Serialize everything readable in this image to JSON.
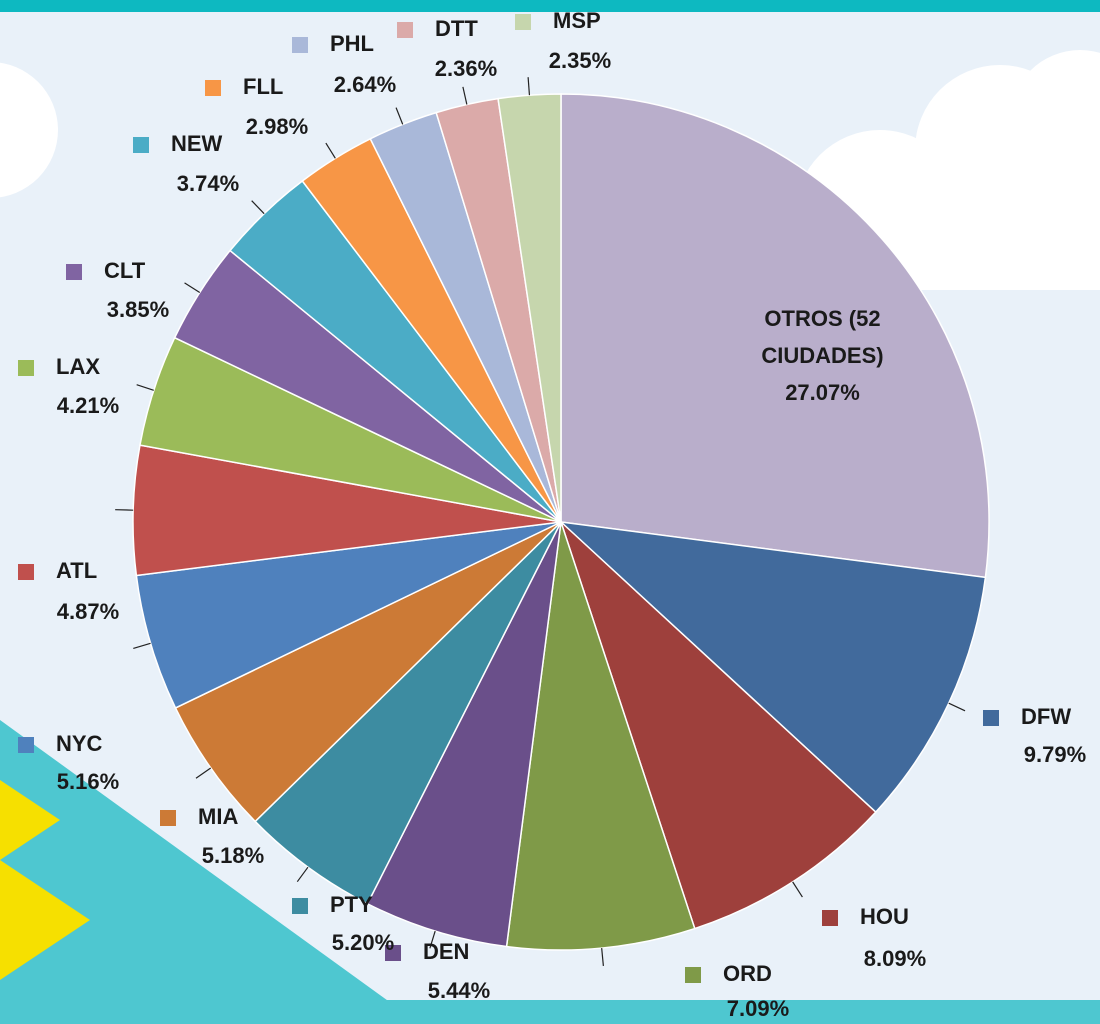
{
  "chart_data": {
    "type": "pie",
    "categories": [
      "OTROS (52 CIUDADES)",
      "DFW",
      "HOU",
      "ORD",
      "DEN",
      "PTY",
      "MIA",
      "NYC",
      "ATL",
      "LAX",
      "CLT",
      "NEW",
      "FLL",
      "PHL",
      "DTT",
      "MSP"
    ],
    "values": [
      27.07,
      9.79,
      8.09,
      7.09,
      5.44,
      5.2,
      5.18,
      5.16,
      4.87,
      4.21,
      3.85,
      3.74,
      2.98,
      2.64,
      2.36,
      2.35
    ],
    "value_labels": [
      "27.07%",
      "9.79%",
      "8.09%",
      "7.09%",
      "5.44%",
      "5.20%",
      "5.18%",
      "5.16%",
      "4.87%",
      "4.21%",
      "3.85%",
      "3.74%",
      "2.98%",
      "2.64%",
      "2.36%",
      "2.35%"
    ],
    "colors": [
      "#b9aecb",
      "#416a9c",
      "#9e403c",
      "#7f9a48",
      "#6a4f8a",
      "#3d8ca1",
      "#cc7a36",
      "#4f81bd",
      "#c0504d",
      "#9bbb59",
      "#8064a2",
      "#4bacc6",
      "#f79646",
      "#a9b8d9",
      "#dbaaa9",
      "#c6d6ad"
    ]
  }
}
